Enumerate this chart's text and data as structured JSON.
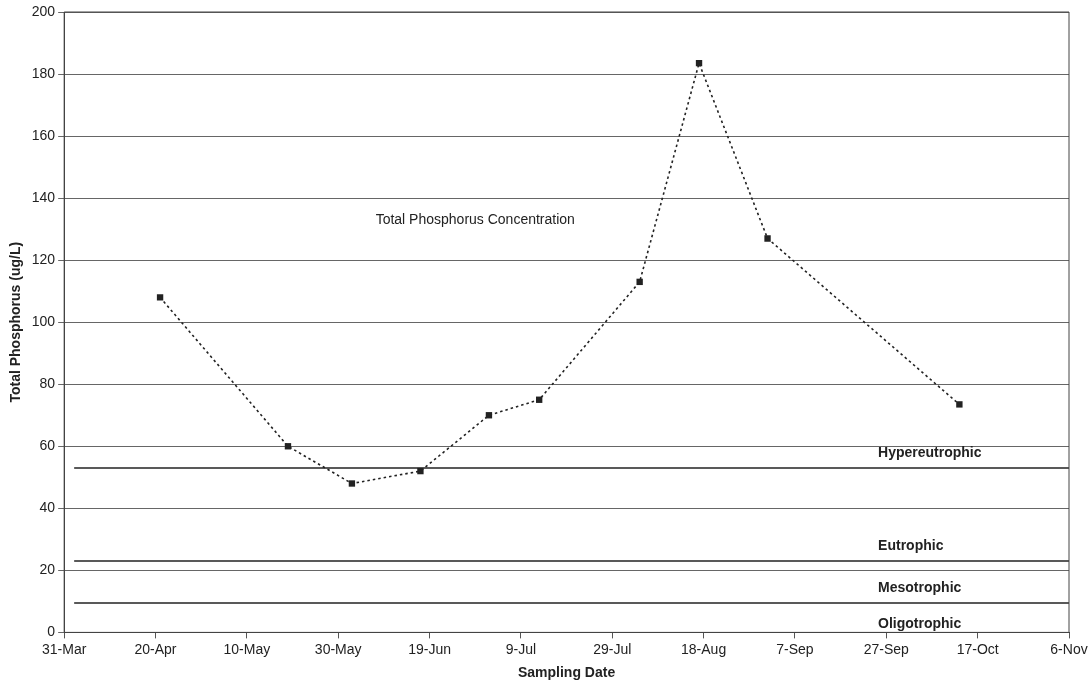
{
  "chart_data": {
    "type": "line",
    "xlabel": "Sampling Date",
    "ylabel": "Total Phosphorus (ug/L)",
    "x": [
      "--04-21",
      "--05-19",
      "--06-02",
      "--06-17",
      "--07-02",
      "--07-13",
      "--08-04",
      "--08-17",
      "--09-01",
      "--10-13"
    ],
    "series": [
      {
        "color": "#222222",
        "values": [
          108,
          60,
          48,
          52,
          70,
          75,
          113,
          183.5,
          127,
          73.5
        ]
      }
    ],
    "xlim": [
      "--03-31",
      "--11-06"
    ],
    "xticks": [
      {
        "value": "--03-31",
        "label": "31-Mar"
      },
      {
        "value": "--04-20",
        "label": "20-Apr"
      },
      {
        "value": "--05-10",
        "label": "10-May"
      },
      {
        "value": "--05-30",
        "label": "30-May"
      },
      {
        "value": "--06-19",
        "label": "19-Jun"
      },
      {
        "value": "--07-09",
        "label": "9-Jul"
      },
      {
        "value": "--07-29",
        "label": "29-Jul"
      },
      {
        "value": "--08-18",
        "label": "18-Aug"
      },
      {
        "value": "--09-07",
        "label": "7-Sep"
      },
      {
        "value": "--09-27",
        "label": "27-Sep"
      },
      {
        "value": "--10-17",
        "label": "17-Oct"
      },
      {
        "value": "--11-06",
        "label": "6-Nov"
      }
    ],
    "ylim": [
      0,
      200
    ],
    "yticks": [
      0,
      20,
      40,
      60,
      80,
      100,
      120,
      140,
      160,
      180,
      200
    ],
    "ref_lines": [
      {
        "axis": "y",
        "value": 53,
        "label": "Hypereutrophic",
        "color": "#222222"
      },
      {
        "axis": "y",
        "value": 23,
        "label": "Eutrophic",
        "color": "#222222"
      },
      {
        "axis": "y",
        "value": 9.5,
        "label": "Mesotrophic",
        "color": "#222222"
      }
    ],
    "annotations": [
      "Total Phosphorus Concentration",
      "Oligotrophic"
    ],
    "grid": "y",
    "legend": false,
    "marker": "square",
    "line_style": "dotted"
  }
}
